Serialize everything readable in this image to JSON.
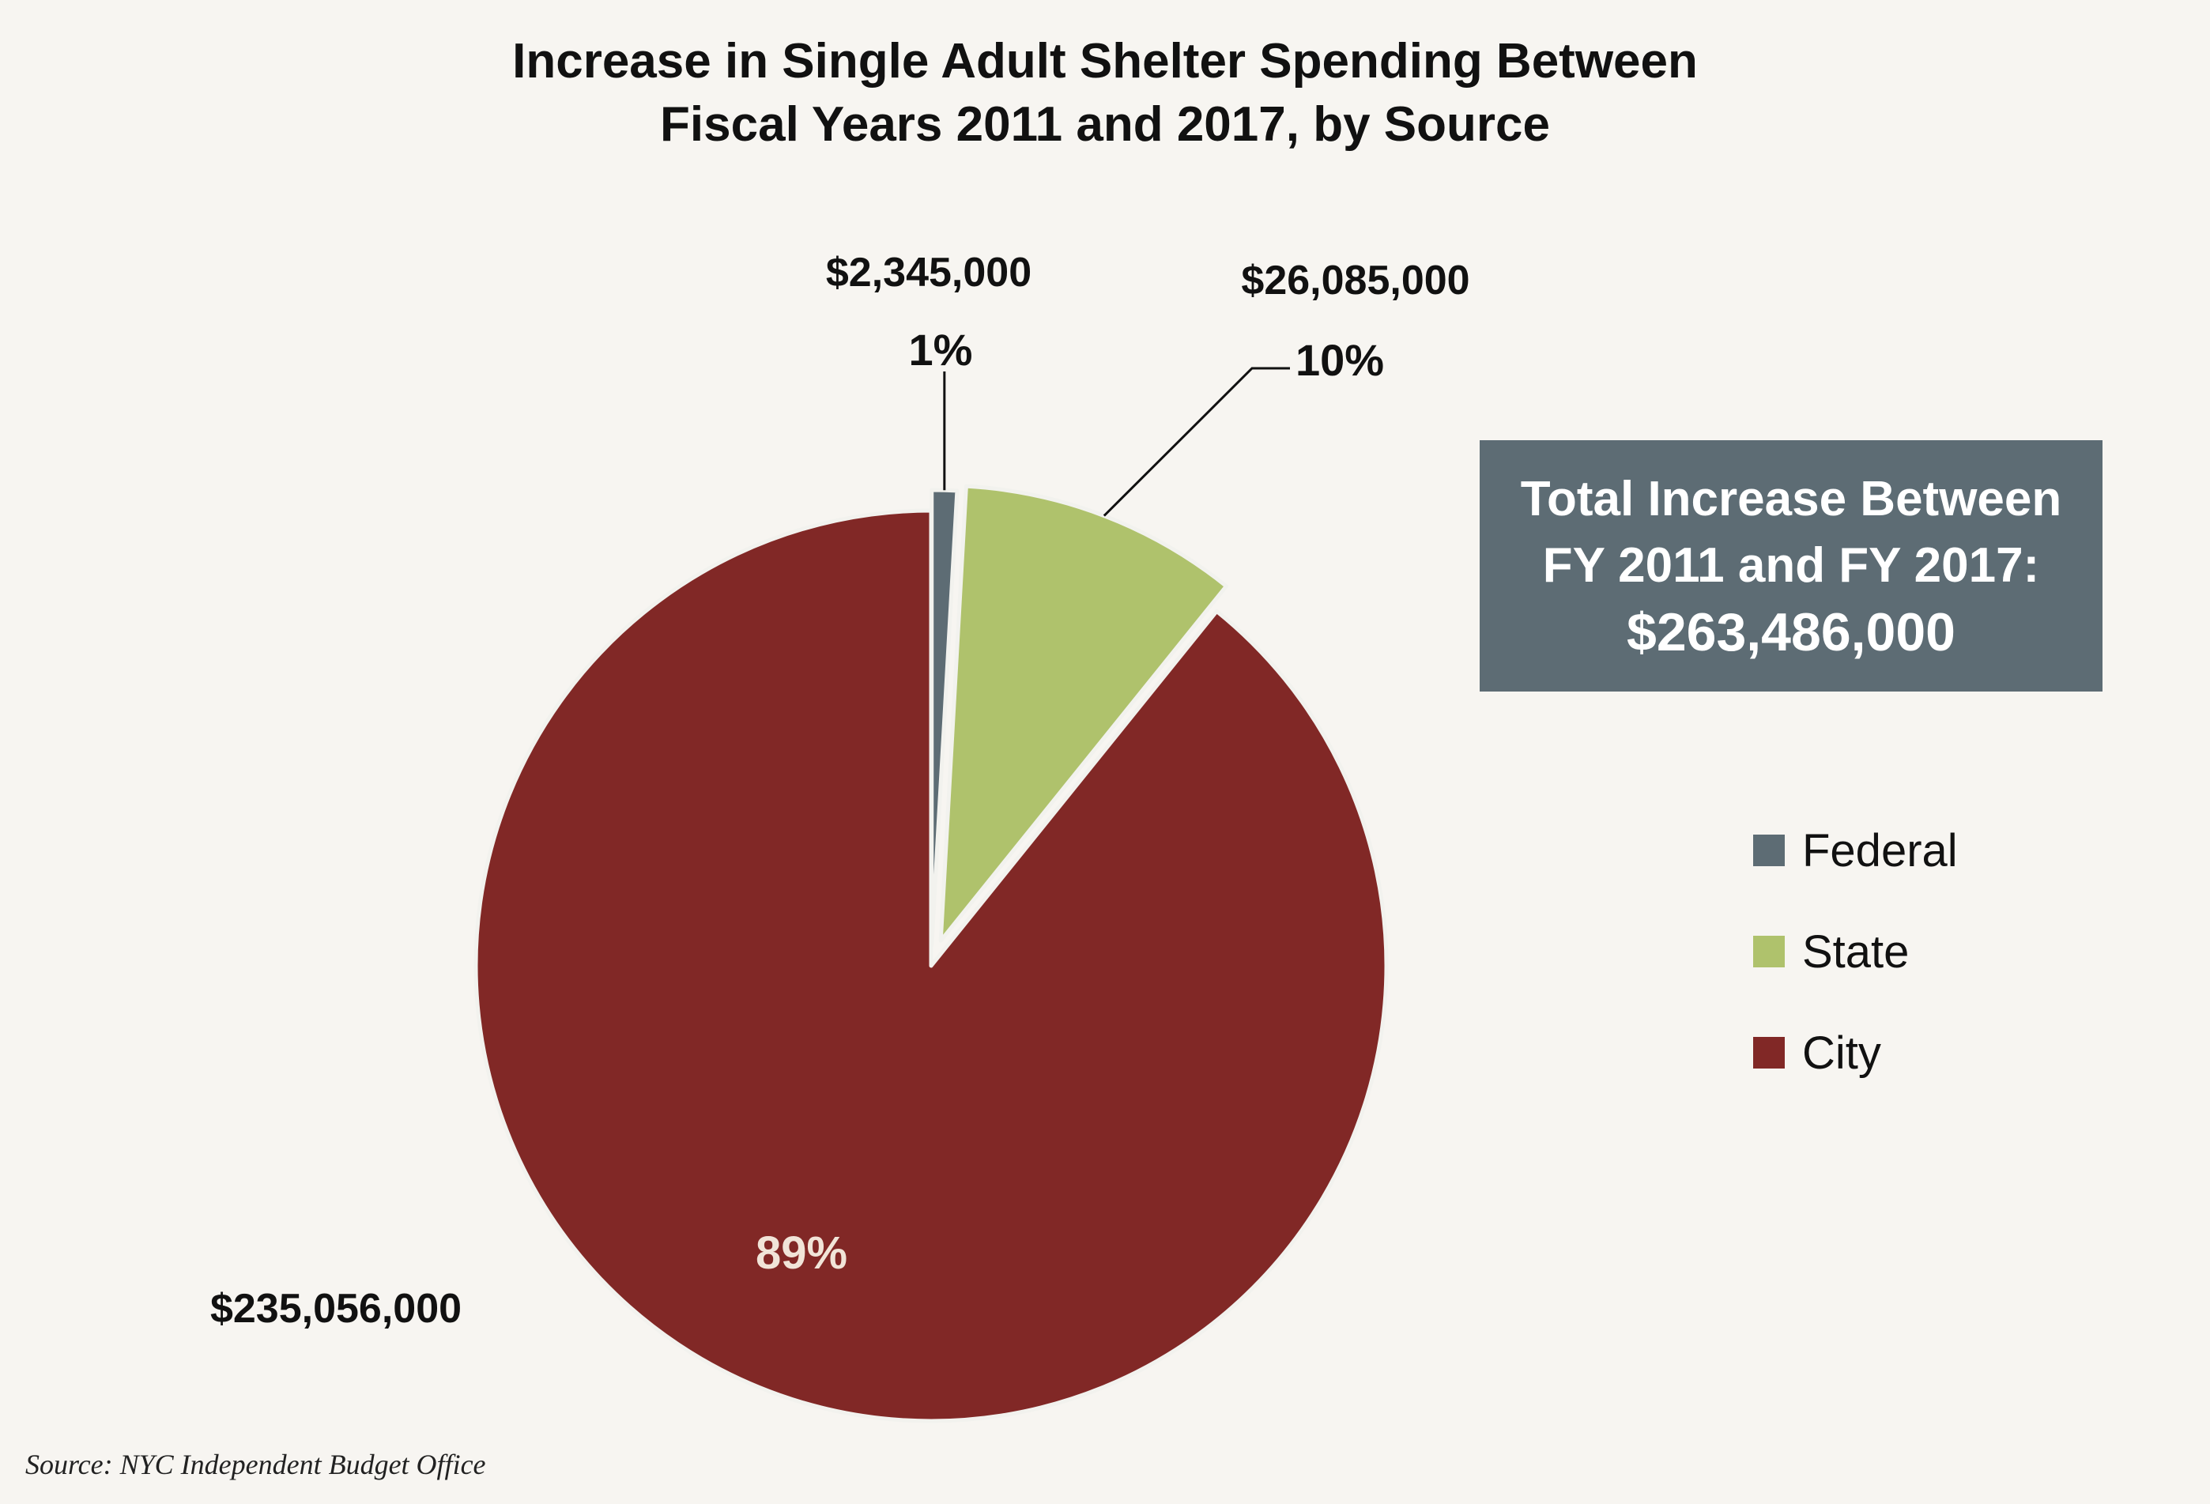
{
  "chart_data": {
    "type": "pie",
    "title": "Increase in Single Adult Shelter Spending Between Fiscal Years 2011 and 2017, by Source",
    "title_lines": [
      "Increase in Single Adult Shelter Spending Between",
      "Fiscal Years 2011 and 2017, by Source"
    ],
    "categories": [
      "Federal",
      "State",
      "City"
    ],
    "values": [
      2345000,
      26085000,
      235056000
    ],
    "value_labels": [
      "$2,345,000",
      "$26,085,000",
      "$235,056,000"
    ],
    "percent_labels": [
      "1%",
      "10%",
      "89%"
    ],
    "colors": [
      "#5d6c74",
      "#afc26c",
      "#812826"
    ],
    "exploded": [
      "Federal",
      "State"
    ],
    "legend_position": "right"
  },
  "total_box": {
    "lines": [
      "Total Increase Between",
      "FY 2011 and FY 2017:",
      "$263,486,000"
    ]
  },
  "legend": {
    "items": [
      {
        "label": "Federal",
        "color": "#5d6c74"
      },
      {
        "label": "State",
        "color": "#afc26c"
      },
      {
        "label": "City",
        "color": "#812826"
      }
    ]
  },
  "source": "Source:  NYC Independent Budget Office"
}
